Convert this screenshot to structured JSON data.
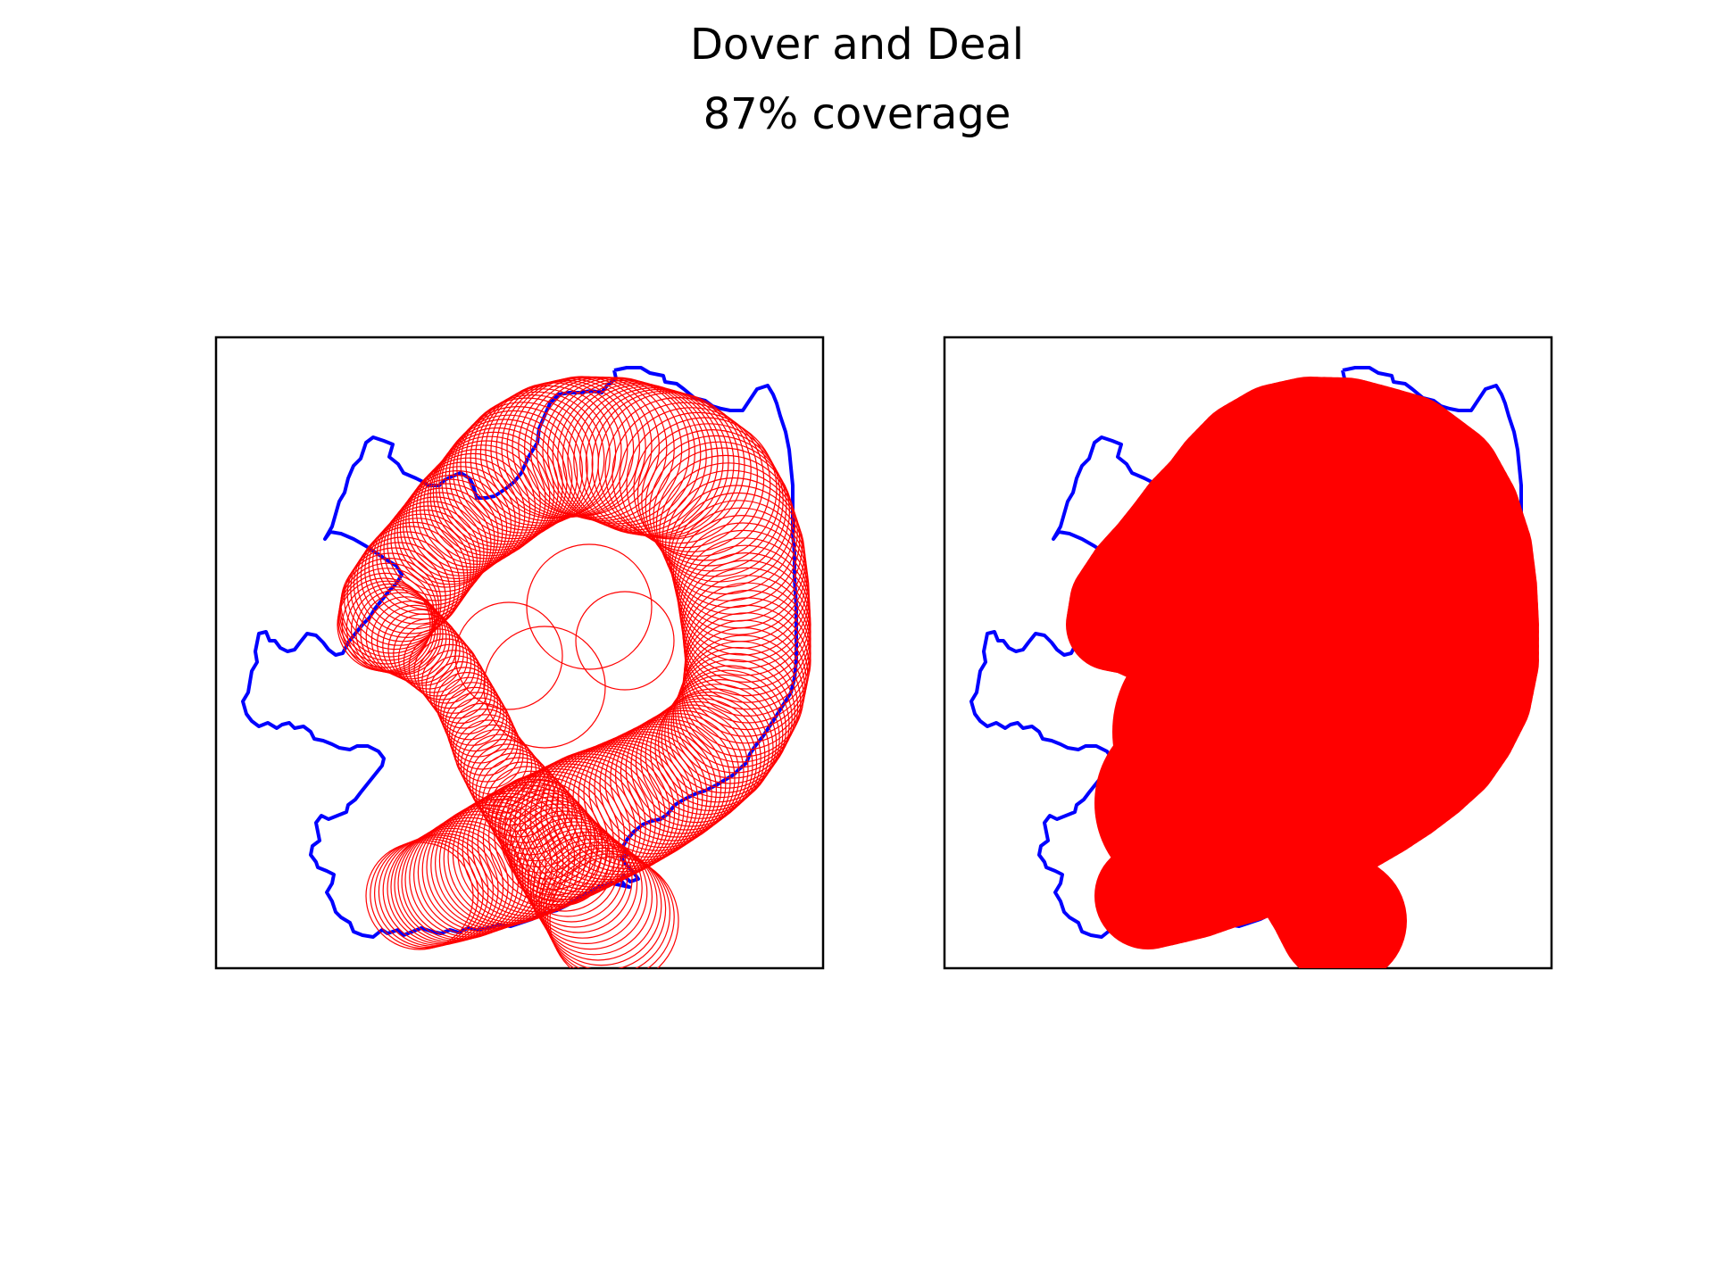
{
  "figure": {
    "title": "Dover and Deal",
    "subtitle": "87% coverage"
  },
  "colors": {
    "boundary": "#0000ff",
    "coverage": "#ff0000",
    "frame": "#000000",
    "background": "#ffffff"
  },
  "panels": [
    {
      "name": "coverage-circles-outline",
      "style": "circle outlines"
    },
    {
      "name": "coverage-circles-filled",
      "style": "filled circles"
    }
  ]
}
